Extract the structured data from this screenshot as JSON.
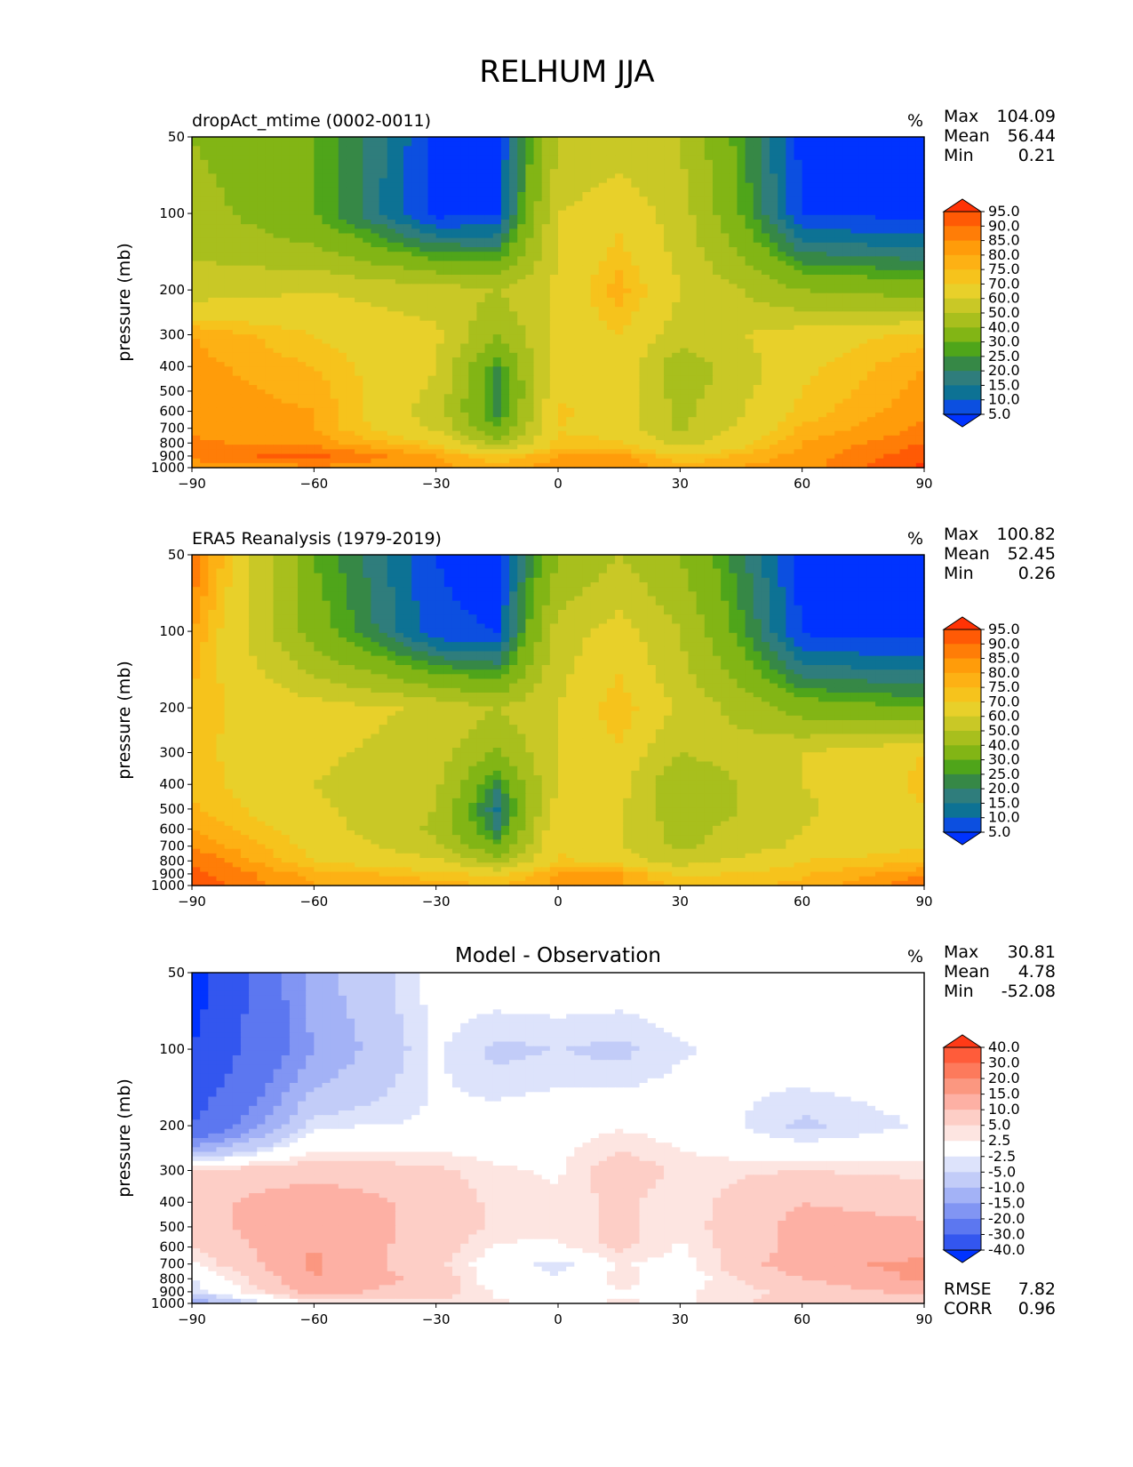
{
  "figure_title": "RELHUM JJA",
  "chart_data": [
    {
      "type": "heatmap",
      "subtype": "filled-contour",
      "title": "dropAct_mtime (0002-0011)",
      "units": "%",
      "xlabel": "",
      "ylabel": "pressure (mb)",
      "xlim": [
        -90,
        90
      ],
      "ylim": [
        1000,
        50
      ],
      "x_ticks": [
        "−90",
        "−60",
        "−30",
        "0",
        "30",
        "60",
        "90"
      ],
      "y_ticks": [
        "50",
        "100",
        "200",
        "300",
        "400",
        "500",
        "600",
        "700",
        "800",
        "900",
        "1000"
      ],
      "stats": [
        {
          "label": "Max",
          "value": "104.09"
        },
        {
          "label": "Mean",
          "value": "56.44"
        },
        {
          "label": "Min",
          "value": "0.21"
        }
      ],
      "colorbar_levels": [
        "95.0",
        "90.0",
        "85.0",
        "80.0",
        "75.0",
        "70.0",
        "60.0",
        "50.0",
        "40.0",
        "30.0",
        "25.0",
        "20.0",
        "15.0",
        "10.0",
        "5.0"
      ],
      "colorbar_colors": [
        "#ff3305",
        "#ff5a05",
        "#ff7d07",
        "#ff9c0a",
        "#fdb114",
        "#f6c31c",
        "#e8d02a",
        "#c9c826",
        "#a8bf1d",
        "#82b515",
        "#4fa51a",
        "#368846",
        "#2f7d7c",
        "#0d7294",
        "#0c4fe0",
        "#0033ff"
      ],
      "field": {
        "x": [
          -90,
          -60,
          -30,
          -15,
          0,
          15,
          30,
          60,
          90
        ],
        "y": [
          50,
          100,
          200,
          300,
          400,
          500,
          600,
          700,
          800,
          900,
          1000
        ],
        "values": [
          [
            40,
            30,
            4,
            3,
            50,
            55,
            50,
            3,
            2
          ],
          [
            45,
            30,
            3,
            5,
            60,
            68,
            55,
            5,
            3
          ],
          [
            55,
            60,
            55,
            50,
            62,
            78,
            60,
            40,
            35
          ],
          [
            80,
            70,
            62,
            40,
            62,
            70,
            55,
            65,
            72
          ],
          [
            82,
            75,
            60,
            25,
            65,
            68,
            42,
            68,
            80
          ],
          [
            83,
            78,
            58,
            20,
            68,
            68,
            45,
            70,
            82
          ],
          [
            84,
            80,
            55,
            22,
            72,
            66,
            47,
            72,
            84
          ],
          [
            84,
            80,
            58,
            30,
            70,
            65,
            48,
            76,
            86
          ],
          [
            86,
            83,
            70,
            45,
            72,
            72,
            55,
            80,
            90
          ],
          [
            88,
            92,
            80,
            70,
            80,
            82,
            70,
            82,
            94
          ],
          [
            80,
            84,
            82,
            78,
            83,
            84,
            78,
            83,
            96
          ]
        ]
      }
    },
    {
      "type": "heatmap",
      "subtype": "filled-contour",
      "title": "ERA5 Reanalysis (1979-2019)",
      "units": "%",
      "xlabel": "",
      "ylabel": "pressure (mb)",
      "xlim": [
        -90,
        90
      ],
      "ylim": [
        1000,
        50
      ],
      "x_ticks": [
        "−90",
        "−60",
        "−30",
        "0",
        "30",
        "60",
        "90"
      ],
      "y_ticks": [
        "50",
        "100",
        "200",
        "300",
        "400",
        "500",
        "600",
        "700",
        "800",
        "900",
        "1000"
      ],
      "stats": [
        {
          "label": "Max",
          "value": "100.82"
        },
        {
          "label": "Mean",
          "value": "52.45"
        },
        {
          "label": "Min",
          "value": "0.26"
        }
      ],
      "colorbar_levels": [
        "95.0",
        "90.0",
        "85.0",
        "80.0",
        "75.0",
        "70.0",
        "60.0",
        "50.0",
        "40.0",
        "30.0",
        "25.0",
        "20.0",
        "15.0",
        "10.0",
        "5.0"
      ],
      "colorbar_colors": [
        "#ff3305",
        "#ff5a05",
        "#ff7d07",
        "#ff9c0a",
        "#fdb114",
        "#f6c31c",
        "#e8d02a",
        "#c9c826",
        "#a8bf1d",
        "#82b515",
        "#4fa51a",
        "#368846",
        "#2f7d7c",
        "#0d7294",
        "#0c4fe0",
        "#0033ff"
      ],
      "field": {
        "x": [
          -90,
          -60,
          -30,
          -15,
          0,
          15,
          30,
          60,
          90
        ],
        "y": [
          50,
          100,
          200,
          300,
          400,
          500,
          600,
          700,
          800,
          900,
          1000
        ],
        "values": [
          [
            90,
            30,
            5,
            3,
            40,
            50,
            40,
            3,
            2
          ],
          [
            80,
            35,
            6,
            5,
            55,
            65,
            50,
            4,
            3
          ],
          [
            72,
            65,
            58,
            50,
            60,
            75,
            58,
            35,
            30
          ],
          [
            72,
            62,
            55,
            38,
            60,
            68,
            50,
            60,
            70
          ],
          [
            74,
            60,
            52,
            22,
            62,
            64,
            40,
            60,
            72
          ],
          [
            76,
            62,
            50,
            14,
            64,
            62,
            42,
            58,
            70
          ],
          [
            80,
            65,
            48,
            20,
            70,
            60,
            46,
            60,
            70
          ],
          [
            85,
            68,
            52,
            30,
            68,
            60,
            48,
            62,
            70
          ],
          [
            90,
            70,
            62,
            45,
            72,
            66,
            55,
            70,
            74
          ],
          [
            92,
            78,
            72,
            68,
            80,
            80,
            68,
            74,
            84
          ],
          [
            94,
            80,
            78,
            75,
            82,
            80,
            74,
            76,
            90
          ]
        ]
      }
    },
    {
      "type": "heatmap",
      "subtype": "filled-contour",
      "title": "Model - Observation",
      "units": "%",
      "xlabel": "",
      "ylabel": "pressure (mb)",
      "xlim": [
        -90,
        90
      ],
      "ylim": [
        1000,
        50
      ],
      "x_ticks": [
        "−90",
        "−60",
        "−30",
        "0",
        "30",
        "60",
        "90"
      ],
      "y_ticks": [
        "50",
        "100",
        "200",
        "300",
        "400",
        "500",
        "600",
        "700",
        "800",
        "900",
        "1000"
      ],
      "stats": [
        {
          "label": "Max",
          "value": "30.81"
        },
        {
          "label": "Mean",
          "value": "4.78"
        },
        {
          "label": "Min",
          "value": "-52.08"
        }
      ],
      "extra_stats": [
        {
          "label": "RMSE",
          "value": "7.82"
        },
        {
          "label": "CORR",
          "value": "0.96"
        }
      ],
      "colorbar_levels": [
        "40.0",
        "30.0",
        "20.0",
        "15.0",
        "10.0",
        "5.0",
        "2.5",
        "-2.5",
        "-5.0",
        "-10.0",
        "-15.0",
        "-20.0",
        "-30.0",
        "-40.0"
      ],
      "colorbar_colors": [
        "#ff3a17",
        "#ff5c3a",
        "#fd7a5c",
        "#fb9780",
        "#fdb0a4",
        "#fdcec6",
        "#fde5e1",
        "#ffffff",
        "#dde3fb",
        "#c2ccf8",
        "#a3b2f6",
        "#8195f3",
        "#5c77f0",
        "#3356ef",
        "#0033ff"
      ],
      "field": {
        "x": [
          -90,
          -60,
          -30,
          -15,
          0,
          15,
          30,
          60,
          90
        ],
        "y": [
          50,
          100,
          200,
          300,
          400,
          500,
          600,
          700,
          800,
          900,
          1000
        ],
        "values": [
          [
            -45,
            -12,
            -1,
            0,
            0,
            0,
            0,
            0,
            0
          ],
          [
            -40,
            -15,
            -2,
            -6,
            -5,
            -6,
            -3,
            0,
            0
          ],
          [
            -30,
            -3,
            -2,
            0,
            1,
            2,
            1,
            -6,
            -2
          ],
          [
            6,
            8,
            6,
            3,
            2,
            8,
            4,
            5,
            4
          ],
          [
            8,
            14,
            8,
            4,
            3,
            6,
            3,
            10,
            8
          ],
          [
            8,
            14,
            8,
            4,
            3,
            6,
            3,
            12,
            11
          ],
          [
            5,
            15,
            7,
            2,
            2,
            6,
            2,
            12,
            13
          ],
          [
            2,
            16,
            6,
            0,
            -4,
            3,
            1,
            14,
            16
          ],
          [
            -3,
            15,
            8,
            0,
            -2,
            4,
            0,
            10,
            16
          ],
          [
            -4,
            12,
            7,
            2,
            0,
            2,
            2,
            6,
            12
          ],
          [
            -14,
            3,
            4,
            3,
            1,
            3,
            2,
            7,
            6
          ]
        ]
      }
    }
  ]
}
